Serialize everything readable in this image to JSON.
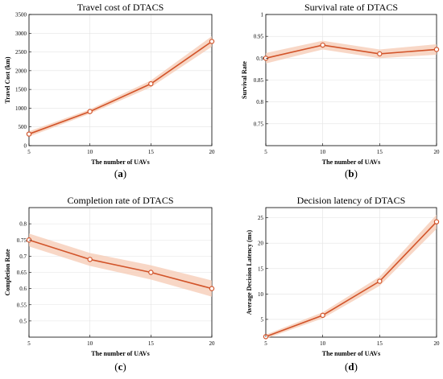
{
  "colors": {
    "line": "#d2542a",
    "band": "#f6c9b3",
    "marker_fill": "#ffffff"
  },
  "chart_data": [
    {
      "type": "line",
      "title": "Travel cost of DTACS",
      "xlabel": "The number of UAVs",
      "ylabel": "Travel Cost (km)",
      "x": [
        5,
        10,
        15,
        20
      ],
      "series": [
        {
          "values": [
            310,
            910,
            1650,
            2780
          ],
          "band": [
            70,
            60,
            90,
            140
          ]
        }
      ],
      "xlim": [
        5,
        20
      ],
      "ylim": [
        0,
        3500
      ],
      "xticks": [
        "5",
        "10",
        "15",
        "20"
      ],
      "yticks": [
        "0",
        "500",
        "1000",
        "1500",
        "2000",
        "2500",
        "3000",
        "3500"
      ],
      "grid": true,
      "label": [
        "(",
        "a",
        ")"
      ]
    },
    {
      "type": "line",
      "title": "Survival rate of DTACS",
      "xlabel": "The number of UAVs",
      "ylabel": "Survival Rate",
      "x": [
        5,
        10,
        15,
        20
      ],
      "series": [
        {
          "values": [
            0.9,
            0.93,
            0.91,
            0.92
          ],
          "band": [
            0.012,
            0.01,
            0.01,
            0.012
          ]
        }
      ],
      "xlim": [
        5,
        20
      ],
      "ylim": [
        0.7,
        1.0
      ],
      "xticks": [
        "5",
        "10",
        "15",
        "20"
      ],
      "yticks": [
        "0.7",
        "0.75",
        "0.8",
        "0.85",
        "0.9",
        "0.95",
        "1"
      ],
      "yticks_shown": [
        "",
        "0.75",
        "0.8",
        "0.85",
        "0.9",
        "0.95",
        "1"
      ],
      "grid": true,
      "label": [
        "(",
        "b",
        ")"
      ]
    },
    {
      "type": "line",
      "title": "Completion rate of DTACS",
      "xlabel": "The number of UAVs",
      "ylabel": "Completion Rate",
      "x": [
        5,
        10,
        15,
        20
      ],
      "series": [
        {
          "values": [
            0.75,
            0.69,
            0.65,
            0.6
          ],
          "band": [
            0.02,
            0.02,
            0.022,
            0.025
          ]
        }
      ],
      "xlim": [
        5,
        20
      ],
      "ylim": [
        0.45,
        0.85
      ],
      "xticks": [
        "5",
        "10",
        "15",
        "20"
      ],
      "yticks": [
        "0.5",
        "0.55",
        "0.6",
        "0.65",
        "0.7",
        "0.75",
        "0.8"
      ],
      "grid": true,
      "label": [
        "(",
        "c",
        ")"
      ]
    },
    {
      "type": "line",
      "title": "Decision latency of DTACS",
      "xlabel": "The number of UAVs",
      "ylabel": "Average Decision Latency (ms)",
      "x": [
        5,
        10,
        15,
        20
      ],
      "series": [
        {
          "values": [
            1.6,
            5.8,
            12.5,
            24.2
          ],
          "band": [
            0.4,
            0.6,
            0.9,
            1.4
          ]
        }
      ],
      "xlim": [
        5,
        20
      ],
      "ylim": [
        1.5,
        27
      ],
      "xticks": [
        "5",
        "10",
        "15",
        "20"
      ],
      "yticks": [
        "5",
        "10",
        "15",
        "20",
        "25"
      ],
      "grid": true,
      "label": [
        "(",
        "d",
        ")"
      ]
    }
  ]
}
